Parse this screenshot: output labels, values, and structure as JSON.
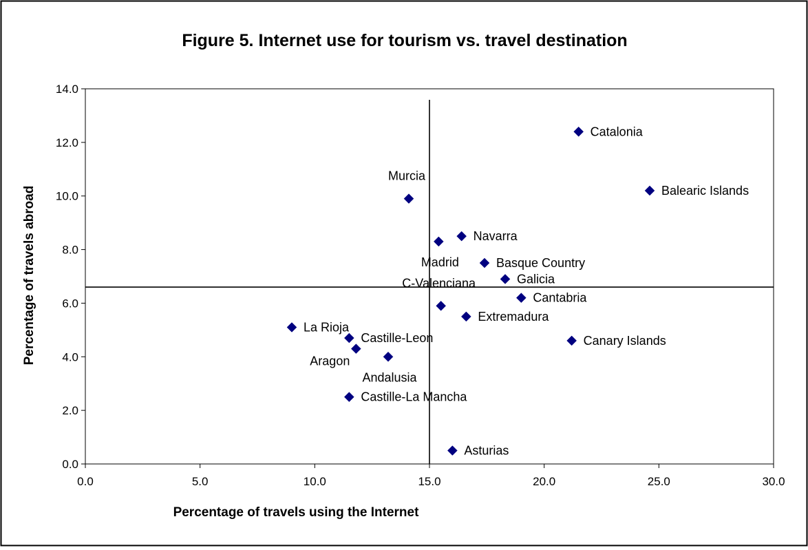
{
  "chart_data": {
    "type": "scatter",
    "title": "Figure 5. Internet use for tourism vs. travel destination",
    "xlabel": "Percentage of travels using the Internet",
    "ylabel": "Percentage of travels abroad",
    "xlim": [
      0,
      30
    ],
    "ylim": [
      0,
      14
    ],
    "xticks": [
      "0.0",
      "5.0",
      "10.0",
      "15.0",
      "20.0",
      "25.0",
      "30.0"
    ],
    "yticks": [
      "0.0",
      "2.0",
      "4.0",
      "6.0",
      "8.0",
      "10.0",
      "12.0",
      "14.0"
    ],
    "grid": false,
    "legend": "none",
    "marker": "diamond",
    "marker_color": "#000080",
    "reference_lines": {
      "vertical_x": 15.0,
      "horizontal_y": 6.6
    },
    "points": [
      {
        "label": "Catalonia",
        "x": 21.5,
        "y": 12.4,
        "label_pos": "right"
      },
      {
        "label": "Balearic Islands",
        "x": 24.6,
        "y": 10.2,
        "label_pos": "right"
      },
      {
        "label": "Murcia",
        "x": 14.1,
        "y": 9.9,
        "label_pos": "above"
      },
      {
        "label": "Navarra",
        "x": 16.4,
        "y": 8.5,
        "label_pos": "right"
      },
      {
        "label": "Madrid",
        "x": 15.4,
        "y": 8.3,
        "label_pos": "below"
      },
      {
        "label": "Basque Country",
        "x": 17.4,
        "y": 7.5,
        "label_pos": "right"
      },
      {
        "label": "Galicia",
        "x": 18.3,
        "y": 6.9,
        "label_pos": "right"
      },
      {
        "label": "Cantabria",
        "x": 19.0,
        "y": 6.2,
        "label_pos": "right"
      },
      {
        "label": "C-Valenciana",
        "x": 15.5,
        "y": 5.9,
        "label_pos": "above"
      },
      {
        "label": "Extremadura",
        "x": 16.6,
        "y": 5.5,
        "label_pos": "right"
      },
      {
        "label": "La Rioja",
        "x": 9.0,
        "y": 5.1,
        "label_pos": "right"
      },
      {
        "label": "Castille-Leon",
        "x": 11.5,
        "y": 4.7,
        "label_pos": "right"
      },
      {
        "label": "Canary Islands",
        "x": 21.2,
        "y": 4.6,
        "label_pos": "right"
      },
      {
        "label": "Aragon",
        "x": 11.8,
        "y": 4.3,
        "label_pos": "below-left"
      },
      {
        "label": "Andalusia",
        "x": 13.2,
        "y": 4.0,
        "label_pos": "below"
      },
      {
        "label": "Castille-La Mancha",
        "x": 11.5,
        "y": 2.5,
        "label_pos": "right"
      },
      {
        "label": "Asturias",
        "x": 16.0,
        "y": 0.5,
        "label_pos": "right"
      }
    ]
  }
}
